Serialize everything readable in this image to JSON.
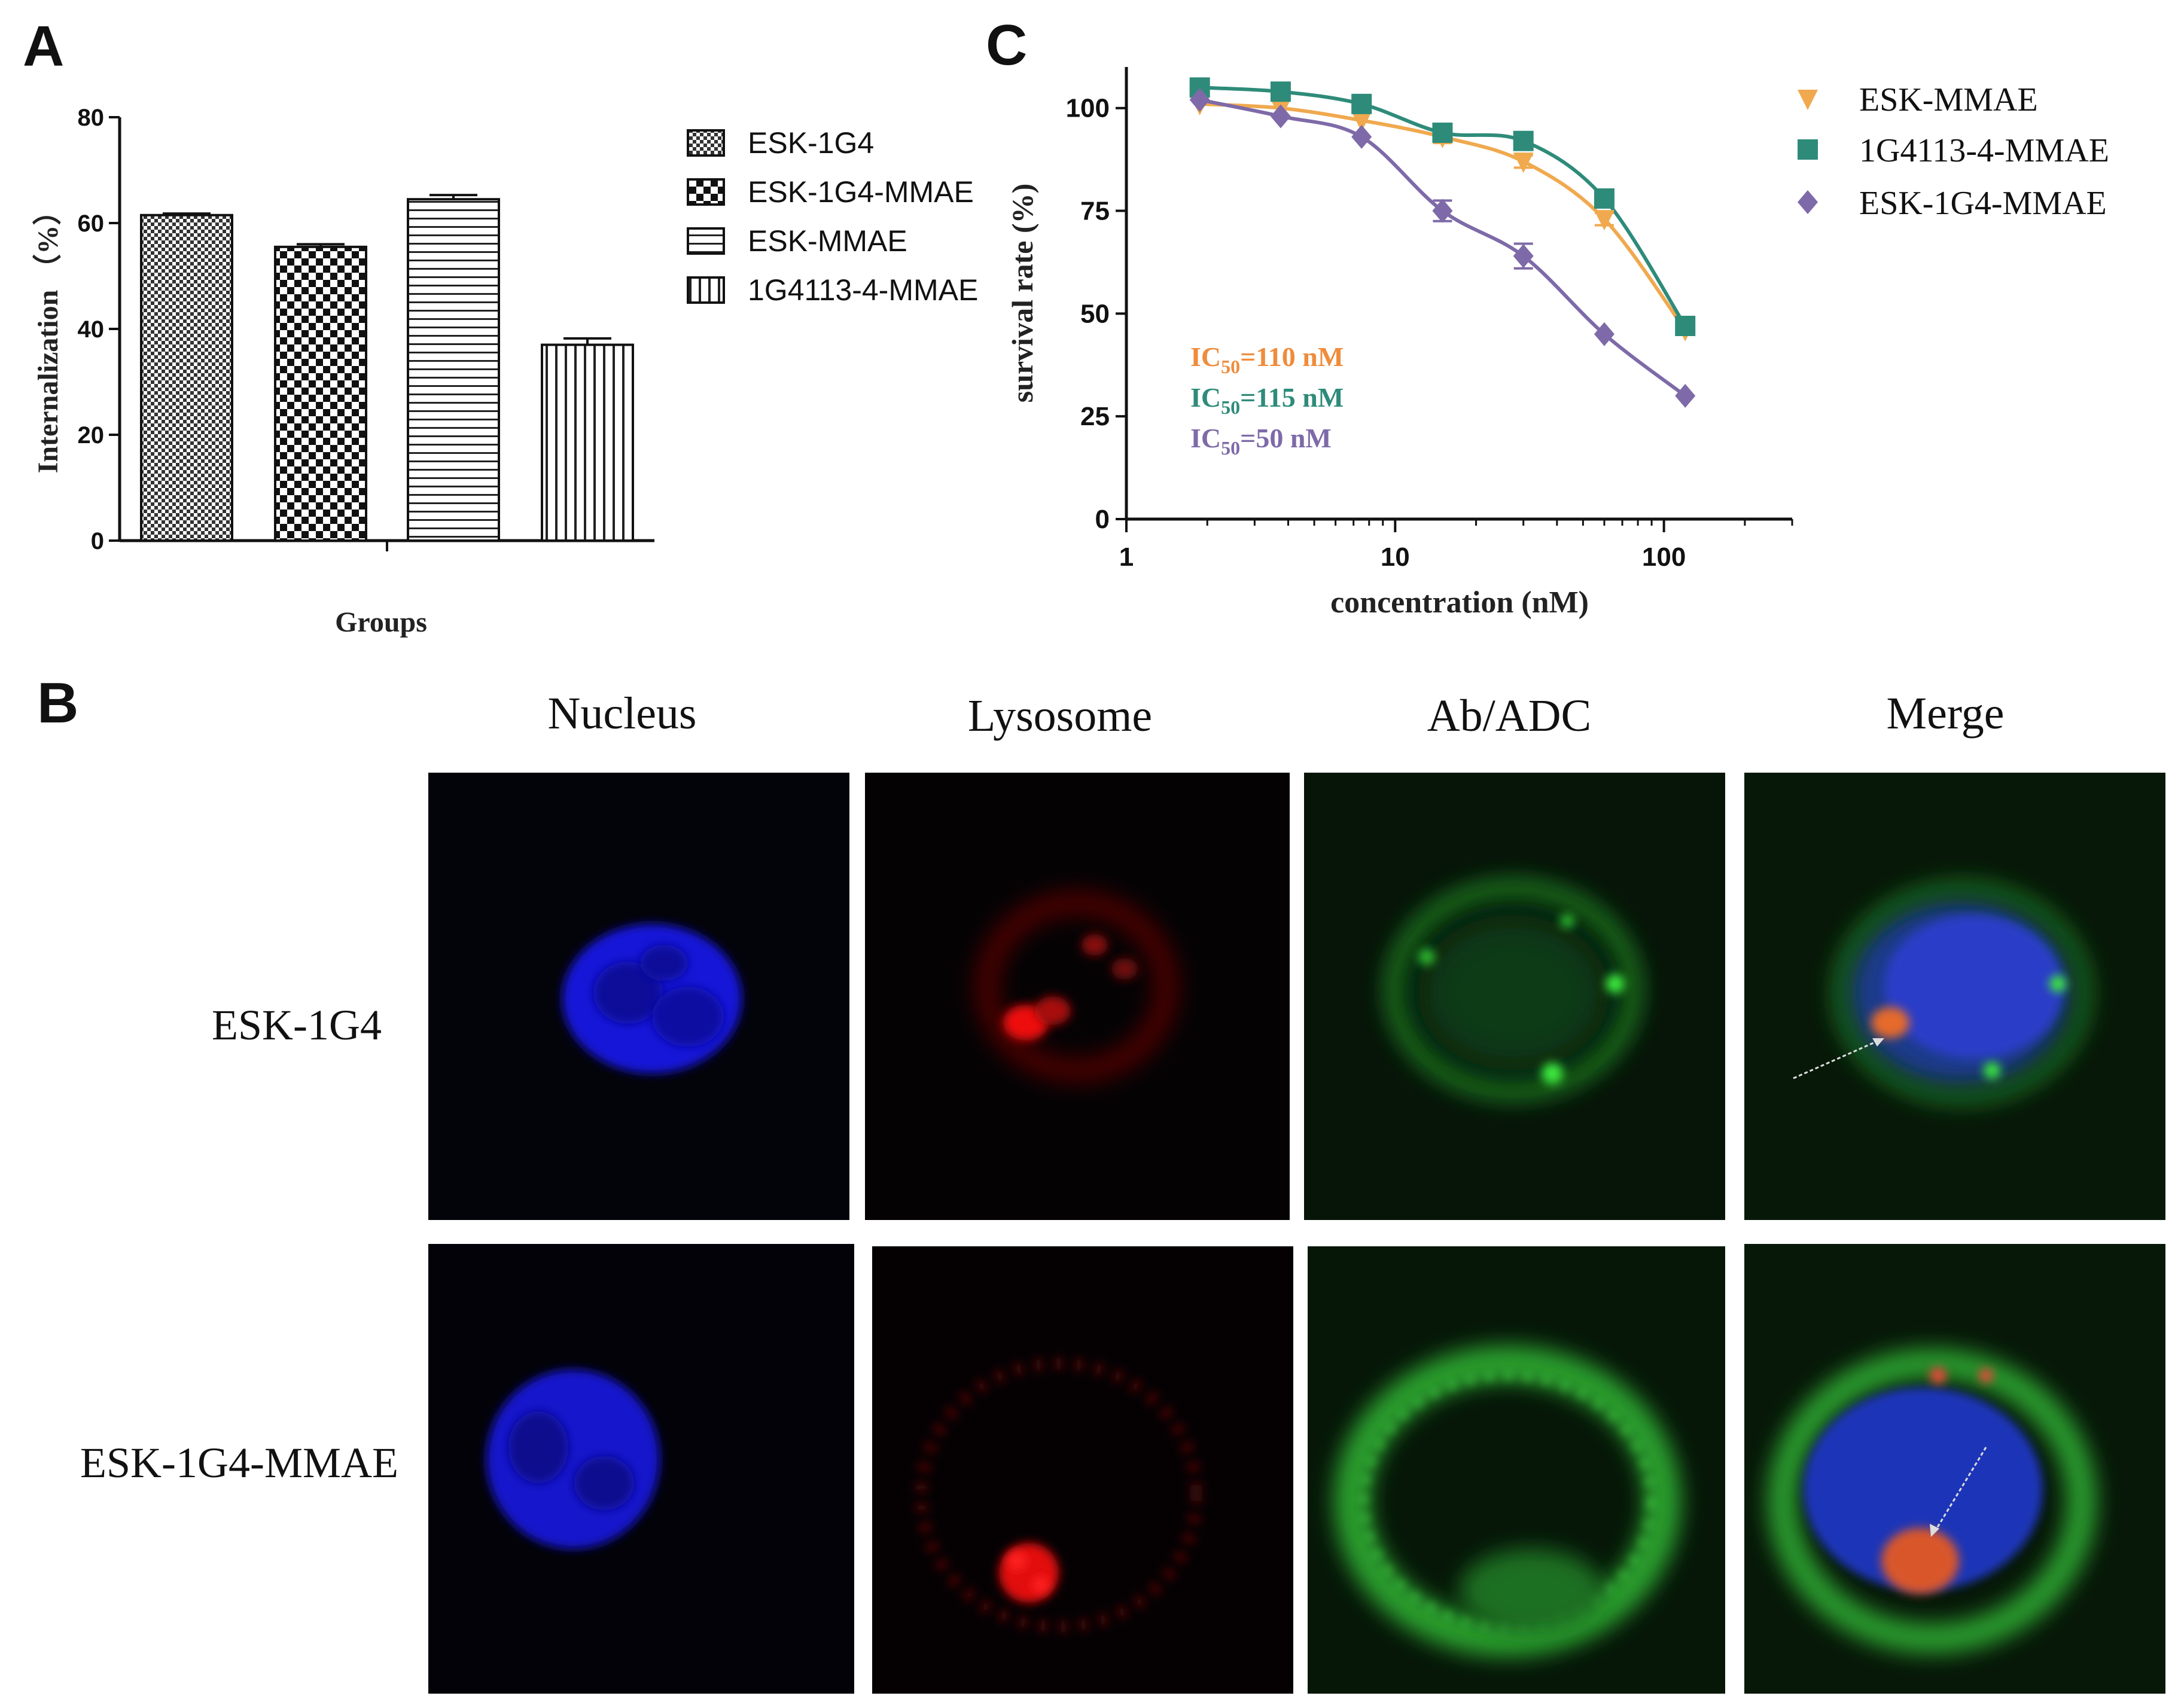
{
  "panel_letters": {
    "a": "A",
    "b": "B",
    "c": "C"
  },
  "colors": {
    "esk_mmae": "#f0a94e",
    "g4113_mmae": "#2e8b7a",
    "esk_1g4_mmae": "#7e6aa8",
    "ic_esk_mmae": "#ef8c3c",
    "ic_g4113": "#2e8b7a",
    "ic_esk_1g4": "#7e6aa8"
  },
  "chart_data": [
    {
      "type": "bar",
      "title": "",
      "xlabel": "Groups",
      "ylabel": "Internalization （%）",
      "ylim": [
        0,
        80
      ],
      "yticks": [
        "0",
        "20",
        "40",
        "60",
        "80"
      ],
      "categories": [
        "ESK-1G4",
        "ESK-1G4-MMAE",
        "ESK-MMAE",
        "1G4113-4-MMAE"
      ],
      "values": [
        61.5,
        55.5,
        64.5,
        37
      ],
      "errors": [
        0.3,
        0.5,
        0.8,
        1.2
      ],
      "legend": [
        "ESK-1G4",
        "ESK-1G4-MMAE",
        "ESK-MMAE",
        "1G4113-4-MMAE"
      ],
      "legend_position": "right"
    },
    {
      "type": "scatter",
      "title": "",
      "xlabel": "concentration (nM)",
      "ylabel": "survival rate (%)",
      "xscale": "log",
      "xlim": [
        1,
        300
      ],
      "ylim": [
        0,
        110
      ],
      "xticks": [
        "1",
        "10",
        "100"
      ],
      "yticks": [
        "0",
        "25",
        "50",
        "75",
        "100"
      ],
      "legend_position": "top-right",
      "series": [
        {
          "name": "ESK-MMAE",
          "marker": "triangle-down",
          "x": [
            1.875,
            3.75,
            7.5,
            15,
            30,
            60,
            120
          ],
          "y": [
            101,
            100,
            97,
            93,
            87,
            73,
            46
          ],
          "err": [
            1,
            1,
            1,
            1.5,
            1.5,
            1.5,
            1
          ]
        },
        {
          "name": "1G4113-4-MMAE",
          "marker": "square",
          "x": [
            1.875,
            3.75,
            7.5,
            15,
            30,
            60,
            120
          ],
          "y": [
            105,
            104,
            101,
            94,
            92,
            78,
            47
          ],
          "err": [
            1,
            1,
            1,
            1.5,
            2,
            1.5,
            1
          ]
        },
        {
          "name": "ESK-1G4-MMAE",
          "marker": "diamond",
          "x": [
            1.875,
            3.75,
            7.5,
            15,
            30,
            60,
            120
          ],
          "y": [
            102,
            98,
            93,
            75,
            64,
            45,
            30
          ],
          "err": [
            1,
            1,
            1,
            2.5,
            3,
            1,
            1
          ]
        }
      ],
      "annotations": [
        {
          "prefix": "IC",
          "sub": "50",
          "suffix": "=110 nM"
        },
        {
          "prefix": "IC",
          "sub": "50",
          "suffix": "=115 nM"
        },
        {
          "prefix": "IC",
          "sub": "50",
          "suffix": "=50 nM"
        }
      ]
    }
  ],
  "micrographs": {
    "columns": [
      "Nucleus",
      "Lysosome",
      "Ab/ADC",
      "Merge"
    ],
    "rows": [
      "ESK-1G4",
      "ESK-1G4-MMAE"
    ]
  }
}
